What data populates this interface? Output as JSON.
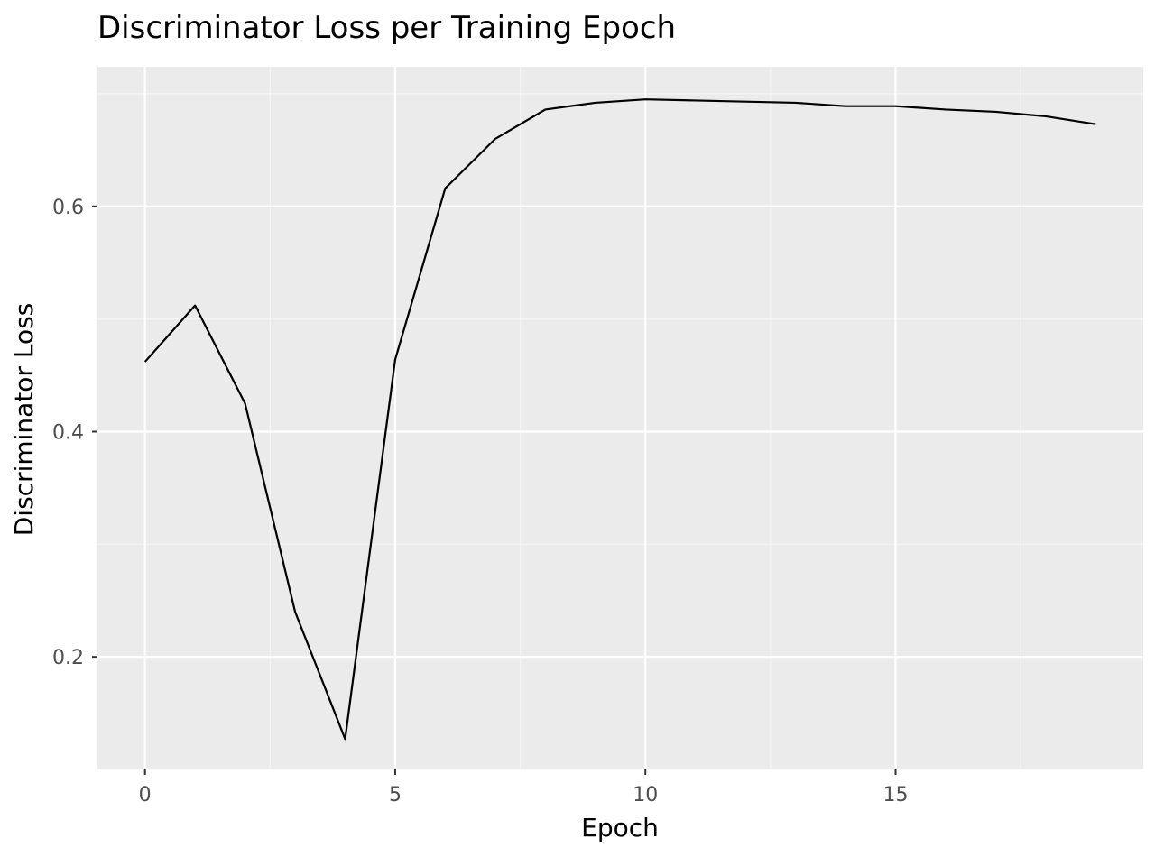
{
  "chart_data": {
    "type": "line",
    "title": "Discriminator Loss per Training Epoch",
    "xlabel": "Epoch",
    "ylabel": "Discriminator Loss",
    "xlim": [
      -0.95,
      19.95
    ],
    "ylim": [
      0.1,
      0.724
    ],
    "x_ticks": [
      0,
      5,
      10,
      15
    ],
    "x_tick_labels": [
      "0",
      "5",
      "10",
      "15"
    ],
    "y_ticks": [
      0.2,
      0.4,
      0.6
    ],
    "y_tick_labels": [
      "0.2",
      "0.4",
      "0.6"
    ],
    "grid": true,
    "legend": "none",
    "colors": {
      "panel_background": "#EBEBEB",
      "grid_major": "#FFFFFF",
      "grid_minor": "#F5F5F5",
      "line": "#000000",
      "tick_text": "#4D4D4D"
    },
    "series": [
      {
        "x": [
          0,
          1,
          2,
          3,
          4,
          5,
          6,
          7,
          8,
          9,
          10,
          11,
          12,
          13,
          14,
          15,
          16,
          17,
          18,
          19
        ],
        "values": [
          0.462,
          0.512,
          0.425,
          0.24,
          0.127,
          0.464,
          0.616,
          0.66,
          0.686,
          0.692,
          0.695,
          0.694,
          0.693,
          0.692,
          0.689,
          0.689,
          0.686,
          0.684,
          0.68,
          0.673
        ]
      }
    ]
  }
}
